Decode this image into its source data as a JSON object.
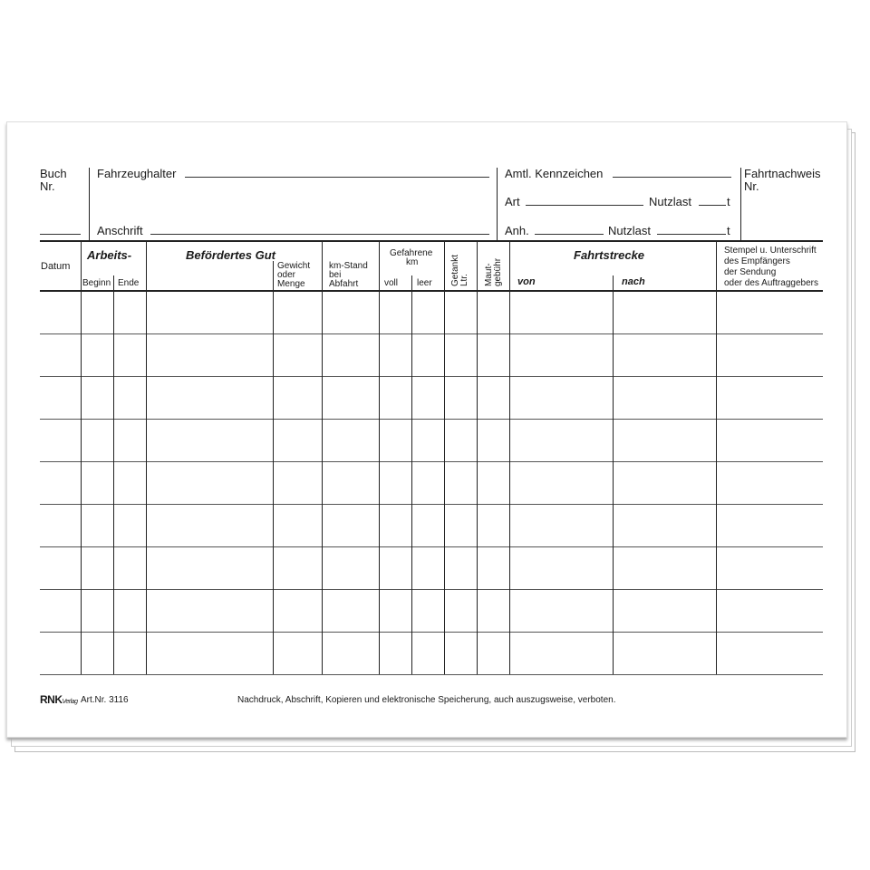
{
  "header": {
    "buch": "Buch",
    "buch_nr": "Nr.",
    "halter": "Fahrzeughalter",
    "anschrift": "Anschrift",
    "kennzeichen": "Amtl. Kennzeichen",
    "art": "Art",
    "nutzlast": "Nutzlast",
    "anh": "Anh.",
    "t": "t",
    "nachweis": "Fahrtnachweis",
    "nachweis_nr": "Nr."
  },
  "columns": {
    "datum": "Datum",
    "arbeits": "Arbeits-",
    "beginn": "Beginn",
    "ende": "Ende",
    "gut": "Befördertes Gut",
    "gewicht": [
      "Gewicht",
      "oder",
      "Menge"
    ],
    "km_stand": [
      "km-Stand",
      "bei",
      "Abfahrt"
    ],
    "gefahrene": [
      "Gefahrene",
      "km"
    ],
    "voll": "voll",
    "leer": "leer",
    "getankt": [
      "Getankt",
      "Ltr."
    ],
    "maut": [
      "Maut-",
      "gebühr"
    ],
    "fahrtstrecke": "Fahrtstrecke",
    "von": "von",
    "nach": "nach",
    "stempel": [
      "Stempel u. Unterschrift",
      "des Empfängers",
      "der Sendung",
      "oder des Auftraggebers"
    ]
  },
  "row_count": 9,
  "footer": {
    "logo": "RNK Verlag",
    "art_nr": "Art.Nr. 3116",
    "notice": "Nachdruck, Abschrift, Kopieren und elektronische Speicherung, auch auszugsweise, verboten."
  }
}
